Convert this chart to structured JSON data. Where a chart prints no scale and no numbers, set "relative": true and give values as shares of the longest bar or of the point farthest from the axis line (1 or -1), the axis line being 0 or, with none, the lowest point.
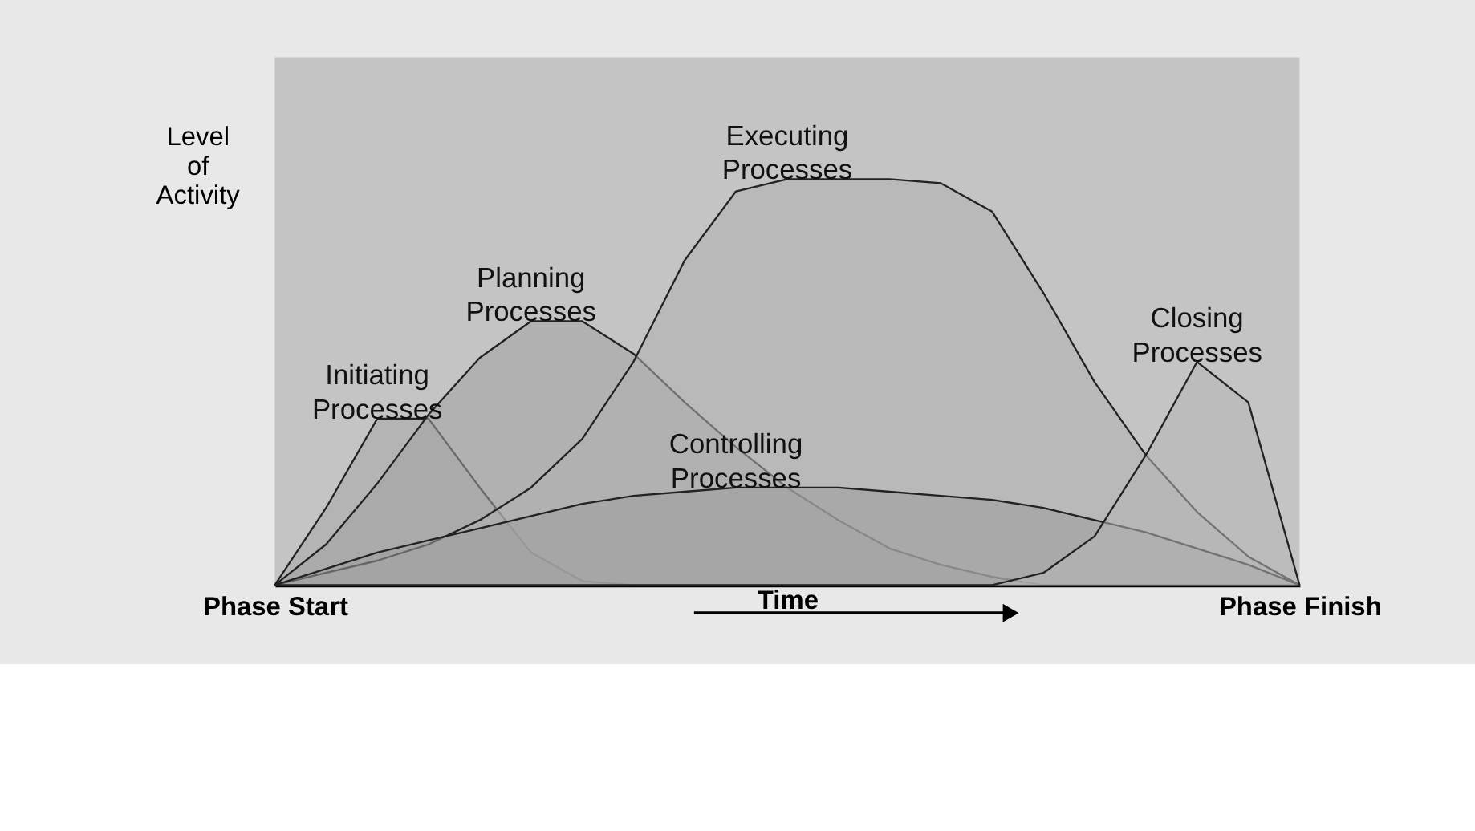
{
  "chart_data": {
    "type": "area",
    "relative": true,
    "xlabel": "Time",
    "ylabel": "Level\nof\nActivity",
    "grid": false,
    "categories": [
      "Phase Start",
      null,
      null,
      null,
      null,
      null,
      null,
      null,
      null,
      null,
      null,
      null,
      null,
      null,
      null,
      null,
      null,
      null,
      null,
      null,
      "Phase Finish"
    ],
    "series": [
      {
        "name": "Initiating\nProcesses",
        "color": "#a8a8a8",
        "values": [
          0,
          0.19,
          0.41,
          0.41,
          0.24,
          0.08,
          0.01,
          0,
          0,
          0,
          0,
          0,
          0,
          0,
          0,
          0,
          0,
          0,
          0,
          0,
          0
        ]
      },
      {
        "name": "Planning\nProcesses",
        "color": "#a2a2a2",
        "values": [
          0,
          0.1,
          0.25,
          0.42,
          0.56,
          0.65,
          0.65,
          0.57,
          0.45,
          0.34,
          0.24,
          0.16,
          0.09,
          0.05,
          0.02,
          0,
          0,
          0,
          0,
          0,
          0
        ]
      },
      {
        "name": "Executing\nProcesses",
        "color": "#b0b0b0",
        "values": [
          0,
          0.03,
          0.06,
          0.1,
          0.16,
          0.24,
          0.36,
          0.55,
          0.8,
          0.97,
          1,
          1,
          1,
          0.99,
          0.92,
          0.72,
          0.5,
          0.32,
          0.18,
          0.07,
          0
        ]
      },
      {
        "name": "Controlling\nProcesses",
        "color": "#9c9c9c",
        "values": [
          0,
          0.04,
          0.08,
          0.11,
          0.14,
          0.17,
          0.2,
          0.22,
          0.23,
          0.24,
          0.24,
          0.24,
          0.23,
          0.22,
          0.21,
          0.19,
          0.16,
          0.13,
          0.09,
          0.05,
          0
        ]
      },
      {
        "name": "Closing\nProcesses",
        "color": "#b6b6b6",
        "values": [
          0,
          0,
          0,
          0,
          0,
          0,
          0,
          0,
          0,
          0,
          0,
          0,
          0,
          0,
          0,
          0.03,
          0.12,
          0.32,
          0.55,
          0.45,
          0
        ]
      }
    ]
  }
}
